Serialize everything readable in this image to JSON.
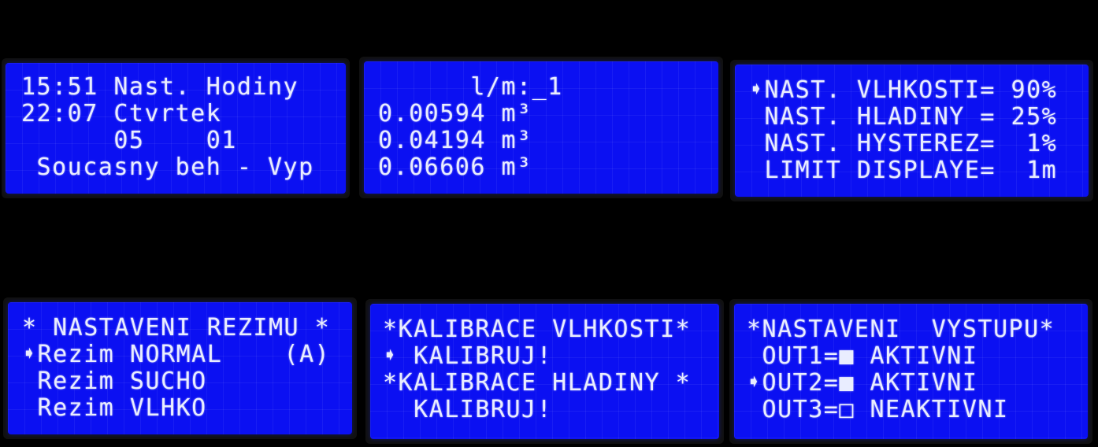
{
  "panels": [
    {
      "lines": [
        "15:51 Nast. Hodiny",
        "22:07 Ctvrtek",
        "      05    01",
        " Soucasny beh - Vyp"
      ]
    },
    {
      "lines": [
        "      l/m:_1",
        "0.00594 m³",
        "0.04194 m³",
        "0.06606 m³"
      ]
    },
    {
      "lines": [
        "➧NAST. VLHKOSTI= 90%",
        " NAST. HLADINY = 25%",
        " NAST. HYSTEREZ=  1%",
        " LIMIT DISPLAYE=  1m"
      ]
    },
    {
      "lines": [
        "* NASTAVENI REZIMU *",
        "➧Rezim NORMAL    (A)",
        " Rezim SUCHO",
        " Rezim VLHKO"
      ]
    },
    {
      "lines": [
        "*KALIBRACE VLHKOSTI*",
        "➧ KALIBRUJ!",
        "*KALIBRACE HLADINY *",
        "  KALIBRUJ!"
      ]
    },
    {
      "lines": [
        "*NASTAVENI  VYSTUPU*",
        " OUT1=■ AKTIVNI",
        "➧OUT2=■ AKTIVNI",
        " OUT3=□ NEAKTIVNI"
      ]
    }
  ]
}
